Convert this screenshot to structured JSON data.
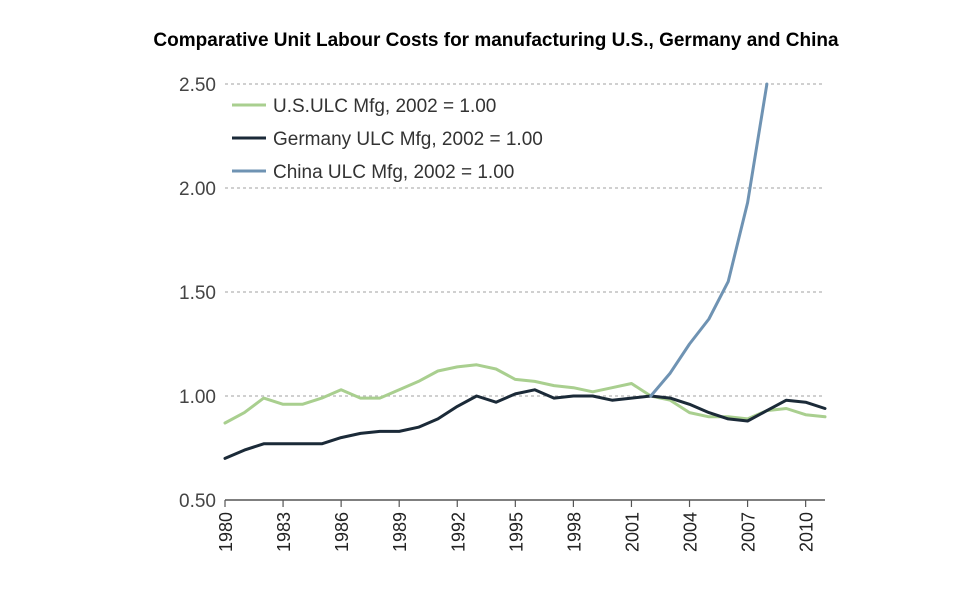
{
  "chart_data": {
    "type": "line",
    "title": "Comparative Unit Labour Costs for manufacturing U.S., Germany and China",
    "xlabel": "",
    "ylabel": "",
    "xlim": [
      1980,
      2011
    ],
    "ylim": [
      0.5,
      2.5
    ],
    "yticks": [
      0.5,
      1.0,
      1.5,
      2.0,
      2.5
    ],
    "ytick_labels": [
      "0.50",
      "1.00",
      "1.50",
      "2.00",
      "2.50"
    ],
    "xticks": [
      1980,
      1983,
      1986,
      1989,
      1992,
      1995,
      1998,
      2001,
      2004,
      2007,
      2010
    ],
    "xtick_labels": [
      "1980",
      "1983",
      "1986",
      "1989",
      "1992",
      "1995",
      "1998",
      "2001",
      "2004",
      "2007",
      "2010"
    ],
    "grid": "horizontal dotted",
    "legend_position": "top-left",
    "series": [
      {
        "name": "U.S.ULC Mfg, 2002 = 1.00",
        "color": "#a9cf8f",
        "x": [
          1980,
          1981,
          1982,
          1983,
          1984,
          1985,
          1986,
          1987,
          1988,
          1989,
          1990,
          1991,
          1992,
          1993,
          1994,
          1995,
          1996,
          1997,
          1998,
          1999,
          2000,
          2001,
          2002,
          2003,
          2004,
          2005,
          2006,
          2007,
          2008,
          2009,
          2010,
          2011
        ],
        "values": [
          0.87,
          0.92,
          0.99,
          0.96,
          0.96,
          0.99,
          1.03,
          0.99,
          0.99,
          1.03,
          1.07,
          1.12,
          1.14,
          1.15,
          1.13,
          1.08,
          1.07,
          1.05,
          1.04,
          1.02,
          1.04,
          1.06,
          1.0,
          0.98,
          0.92,
          0.9,
          0.9,
          0.89,
          0.93,
          0.94,
          0.91,
          0.9
        ]
      },
      {
        "name": "Germany ULC Mfg, 2002 = 1.00",
        "color": "#1b2a38",
        "x": [
          1980,
          1981,
          1982,
          1983,
          1984,
          1985,
          1986,
          1987,
          1988,
          1989,
          1990,
          1991,
          1992,
          1993,
          1994,
          1995,
          1996,
          1997,
          1998,
          1999,
          2000,
          2001,
          2002,
          2003,
          2004,
          2005,
          2006,
          2007,
          2008,
          2009,
          2010,
          2011
        ],
        "values": [
          0.7,
          0.74,
          0.77,
          0.77,
          0.77,
          0.77,
          0.8,
          0.82,
          0.83,
          0.83,
          0.85,
          0.89,
          0.95,
          1.0,
          0.97,
          1.01,
          1.03,
          0.99,
          1.0,
          1.0,
          0.98,
          0.99,
          1.0,
          0.99,
          0.96,
          0.92,
          0.89,
          0.88,
          0.93,
          0.98,
          0.97,
          0.94
        ]
      },
      {
        "name": "China ULC Mfg, 2002 = 1.00",
        "color": "#6f93b3",
        "x": [
          2002,
          2003,
          2004,
          2005,
          2006,
          2007,
          2008
        ],
        "values": [
          1.0,
          1.11,
          1.25,
          1.37,
          1.55,
          1.93,
          2.5
        ]
      }
    ]
  }
}
